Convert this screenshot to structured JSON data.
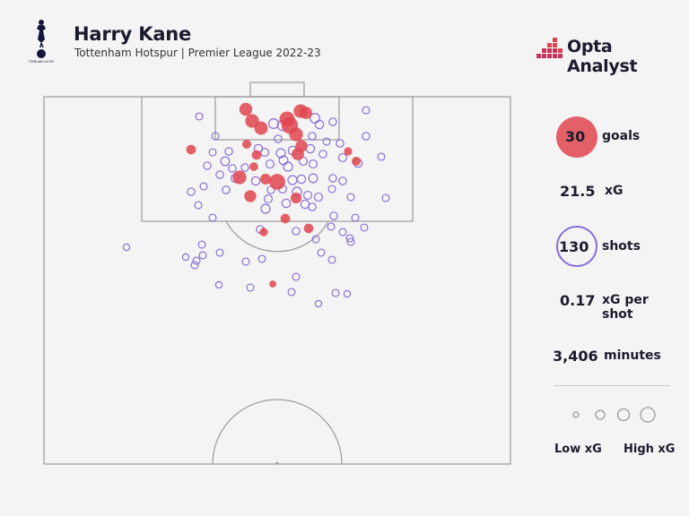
{
  "header": {
    "player_name": "Harry Kane",
    "subtitle": "Tottenham Hotspur | Premier League 2022-23",
    "club_logo_text": "TOTTENHAM HOTSPUR",
    "brand_name": "Opta Analyst"
  },
  "stats": {
    "goals_value": "30",
    "goals_label": "goals",
    "xg_value": "21.5",
    "xg_label": "xG",
    "shots_value": "130",
    "shots_label": "shots",
    "xg_per_shot_value": "0.17",
    "xg_per_shot_label": "xG per shot",
    "minutes_value": "3,406",
    "minutes_label": "minutes"
  },
  "legend": {
    "low_label": "Low xG",
    "high_label": "High xG"
  },
  "colors": {
    "goal": "#e0454f",
    "shot": "#8a6fd8",
    "pitch_line": "#9b9b9b",
    "background": "#f5f4f4"
  },
  "chart_data": {
    "type": "scatter",
    "title": "Harry Kane",
    "subtitle": "Tottenham Hotspur | Premier League 2022-23",
    "series": [
      {
        "name": "goals",
        "points": [
          {
            "x": 274,
            "y": 122,
            "xg": 0.25
          },
          {
            "x": 281,
            "y": 135,
            "xg": 0.3
          },
          {
            "x": 291,
            "y": 143,
            "xg": 0.28
          },
          {
            "x": 320,
            "y": 133,
            "xg": 0.4
          },
          {
            "x": 323,
            "y": 140,
            "xg": 0.5
          },
          {
            "x": 335,
            "y": 124,
            "xg": 0.3
          },
          {
            "x": 341,
            "y": 126,
            "xg": 0.22
          },
          {
            "x": 330,
            "y": 150,
            "xg": 0.3
          },
          {
            "x": 336,
            "y": 163,
            "xg": 0.2
          },
          {
            "x": 332,
            "y": 172,
            "xg": 0.22
          },
          {
            "x": 213,
            "y": 167,
            "xg": 0.1
          },
          {
            "x": 275,
            "y": 161,
            "xg": 0.08
          },
          {
            "x": 286,
            "y": 173,
            "xg": 0.1
          },
          {
            "x": 283,
            "y": 186,
            "xg": 0.07
          },
          {
            "x": 267,
            "y": 198,
            "xg": 0.3
          },
          {
            "x": 296,
            "y": 200,
            "xg": 0.15
          },
          {
            "x": 309,
            "y": 203,
            "xg": 0.45
          },
          {
            "x": 279,
            "y": 219,
            "xg": 0.2
          },
          {
            "x": 330,
            "y": 221,
            "xg": 0.15
          },
          {
            "x": 318,
            "y": 244,
            "xg": 0.1
          },
          {
            "x": 344,
            "y": 255,
            "xg": 0.1
          },
          {
            "x": 294,
            "y": 259,
            "xg": 0.06
          },
          {
            "x": 304,
            "y": 317,
            "xg": 0.03
          },
          {
            "x": 388,
            "y": 169,
            "xg": 0.06
          },
          {
            "x": 397,
            "y": 180,
            "xg": 0.08
          }
        ]
      },
      {
        "name": "shots",
        "points": [
          {
            "x": 222,
            "y": 130,
            "xg": 0.03
          },
          {
            "x": 408,
            "y": 123,
            "xg": 0.03
          },
          {
            "x": 240,
            "y": 152,
            "xg": 0.03
          },
          {
            "x": 371,
            "y": 136,
            "xg": 0.04
          },
          {
            "x": 305,
            "y": 138,
            "xg": 0.1
          },
          {
            "x": 315,
            "y": 140,
            "xg": 0.12
          },
          {
            "x": 351,
            "y": 132,
            "xg": 0.1
          },
          {
            "x": 356,
            "y": 139,
            "xg": 0.06
          },
          {
            "x": 348,
            "y": 152,
            "xg": 0.04
          },
          {
            "x": 310,
            "y": 155,
            "xg": 0.04
          },
          {
            "x": 379,
            "y": 160,
            "xg": 0.04
          },
          {
            "x": 364,
            "y": 158,
            "xg": 0.03
          },
          {
            "x": 237,
            "y": 170,
            "xg": 0.03
          },
          {
            "x": 255,
            "y": 169,
            "xg": 0.04
          },
          {
            "x": 288,
            "y": 166,
            "xg": 0.06
          },
          {
            "x": 295,
            "y": 170,
            "xg": 0.05
          },
          {
            "x": 313,
            "y": 171,
            "xg": 0.08
          },
          {
            "x": 326,
            "y": 168,
            "xg": 0.06
          },
          {
            "x": 346,
            "y": 166,
            "xg": 0.06
          },
          {
            "x": 360,
            "y": 172,
            "xg": 0.04
          },
          {
            "x": 408,
            "y": 152,
            "xg": 0.04
          },
          {
            "x": 425,
            "y": 175,
            "xg": 0.03
          },
          {
            "x": 382,
            "y": 176,
            "xg": 0.05
          },
          {
            "x": 399,
            "y": 182,
            "xg": 0.06
          },
          {
            "x": 231,
            "y": 185,
            "xg": 0.04
          },
          {
            "x": 251,
            "y": 180,
            "xg": 0.07
          },
          {
            "x": 259,
            "y": 188,
            "xg": 0.04
          },
          {
            "x": 273,
            "y": 187,
            "xg": 0.04
          },
          {
            "x": 301,
            "y": 183,
            "xg": 0.05
          },
          {
            "x": 316,
            "y": 179,
            "xg": 0.07
          },
          {
            "x": 321,
            "y": 186,
            "xg": 0.08
          },
          {
            "x": 338,
            "y": 180,
            "xg": 0.05
          },
          {
            "x": 349,
            "y": 183,
            "xg": 0.05
          },
          {
            "x": 245,
            "y": 195,
            "xg": 0.04
          },
          {
            "x": 262,
            "y": 199,
            "xg": 0.05
          },
          {
            "x": 285,
            "y": 202,
            "xg": 0.06
          },
          {
            "x": 326,
            "y": 201,
            "xg": 0.08
          },
          {
            "x": 336,
            "y": 200,
            "xg": 0.06
          },
          {
            "x": 349,
            "y": 199,
            "xg": 0.07
          },
          {
            "x": 371,
            "y": 199,
            "xg": 0.04
          },
          {
            "x": 382,
            "y": 202,
            "xg": 0.04
          },
          {
            "x": 213,
            "y": 214,
            "xg": 0.04
          },
          {
            "x": 227,
            "y": 208,
            "xg": 0.03
          },
          {
            "x": 252,
            "y": 212,
            "xg": 0.04
          },
          {
            "x": 302,
            "y": 212,
            "xg": 0.04
          },
          {
            "x": 315,
            "y": 211,
            "xg": 0.05
          },
          {
            "x": 331,
            "y": 214,
            "xg": 0.08
          },
          {
            "x": 343,
            "y": 218,
            "xg": 0.05
          },
          {
            "x": 355,
            "y": 220,
            "xg": 0.05
          },
          {
            "x": 370,
            "y": 211,
            "xg": 0.03
          },
          {
            "x": 221,
            "y": 229,
            "xg": 0.03
          },
          {
            "x": 299,
            "y": 222,
            "xg": 0.05
          },
          {
            "x": 319,
            "y": 227,
            "xg": 0.06
          },
          {
            "x": 340,
            "y": 228,
            "xg": 0.06
          },
          {
            "x": 348,
            "y": 231,
            "xg": 0.04
          },
          {
            "x": 296,
            "y": 233,
            "xg": 0.08
          },
          {
            "x": 391,
            "y": 220,
            "xg": 0.03
          },
          {
            "x": 430,
            "y": 221,
            "xg": 0.03
          },
          {
            "x": 237,
            "y": 243,
            "xg": 0.03
          },
          {
            "x": 372,
            "y": 241,
            "xg": 0.04
          },
          {
            "x": 396,
            "y": 243,
            "xg": 0.03
          },
          {
            "x": 290,
            "y": 256,
            "xg": 0.04
          },
          {
            "x": 330,
            "y": 258,
            "xg": 0.04
          },
          {
            "x": 369,
            "y": 253,
            "xg": 0.03
          },
          {
            "x": 382,
            "y": 259,
            "xg": 0.03
          },
          {
            "x": 406,
            "y": 254,
            "xg": 0.03
          },
          {
            "x": 141,
            "y": 276,
            "xg": 0.02
          },
          {
            "x": 225,
            "y": 273,
            "xg": 0.03
          },
          {
            "x": 352,
            "y": 267,
            "xg": 0.03
          },
          {
            "x": 390,
            "y": 266,
            "xg": 0.03
          },
          {
            "x": 391,
            "y": 270,
            "xg": 0.03
          },
          {
            "x": 207,
            "y": 287,
            "xg": 0.02
          },
          {
            "x": 226,
            "y": 285,
            "xg": 0.03
          },
          {
            "x": 245,
            "y": 282,
            "xg": 0.03
          },
          {
            "x": 358,
            "y": 282,
            "xg": 0.03
          },
          {
            "x": 219,
            "y": 291,
            "xg": 0.03
          },
          {
            "x": 274,
            "y": 292,
            "xg": 0.03
          },
          {
            "x": 217,
            "y": 296,
            "xg": 0.03
          },
          {
            "x": 370,
            "y": 290,
            "xg": 0.03
          },
          {
            "x": 292,
            "y": 289,
            "xg": 0.03
          },
          {
            "x": 330,
            "y": 309,
            "xg": 0.03
          },
          {
            "x": 244,
            "y": 318,
            "xg": 0.02
          },
          {
            "x": 279,
            "y": 321,
            "xg": 0.03
          },
          {
            "x": 325,
            "y": 326,
            "xg": 0.03
          },
          {
            "x": 374,
            "y": 327,
            "xg": 0.03
          },
          {
            "x": 387,
            "y": 328,
            "xg": 0.02
          },
          {
            "x": 355,
            "y": 339,
            "xg": 0.02
          }
        ]
      }
    ]
  }
}
